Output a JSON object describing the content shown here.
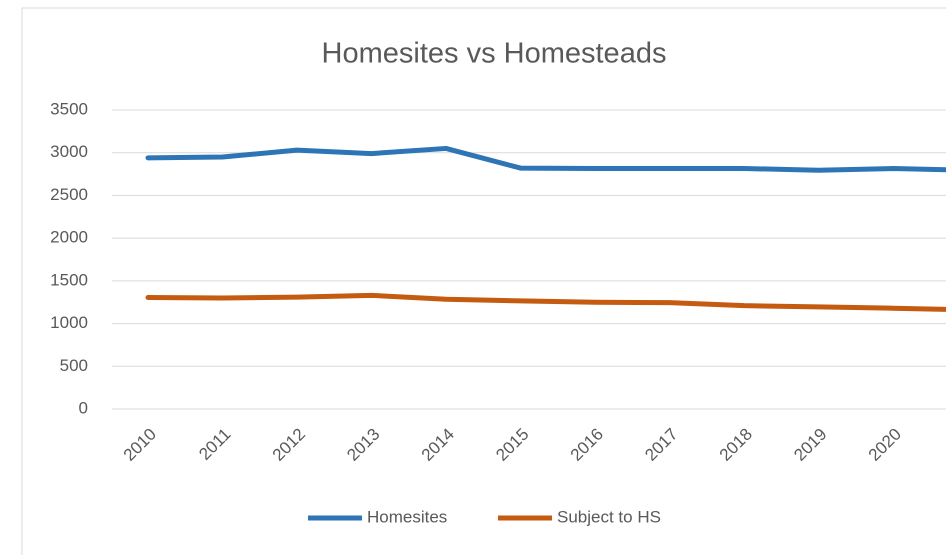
{
  "chart_data": {
    "type": "line",
    "title": "Homesites vs Homesteads",
    "categories": [
      "2010",
      "2011",
      "2012",
      "2013",
      "2014",
      "2015",
      "2016",
      "2017",
      "2018",
      "2019",
      "2020",
      null
    ],
    "series": [
      {
        "name": "Homesites",
        "color": "#2e75b6",
        "values": [
          2940,
          2950,
          3030,
          2990,
          3050,
          2820,
          2815,
          2815,
          2815,
          2795,
          2815,
          2795
        ]
      },
      {
        "name": "Subject to HS",
        "color": "#c55a11",
        "values": [
          1305,
          1300,
          1310,
          1330,
          1285,
          1265,
          1250,
          1245,
          1210,
          1195,
          1180,
          1160
        ]
      }
    ],
    "ylim": [
      0,
      3500
    ],
    "yticks": [
      0,
      500,
      1000,
      1500,
      2000,
      2500,
      3000,
      3500
    ],
    "grid": true,
    "legend": "bottom"
  }
}
